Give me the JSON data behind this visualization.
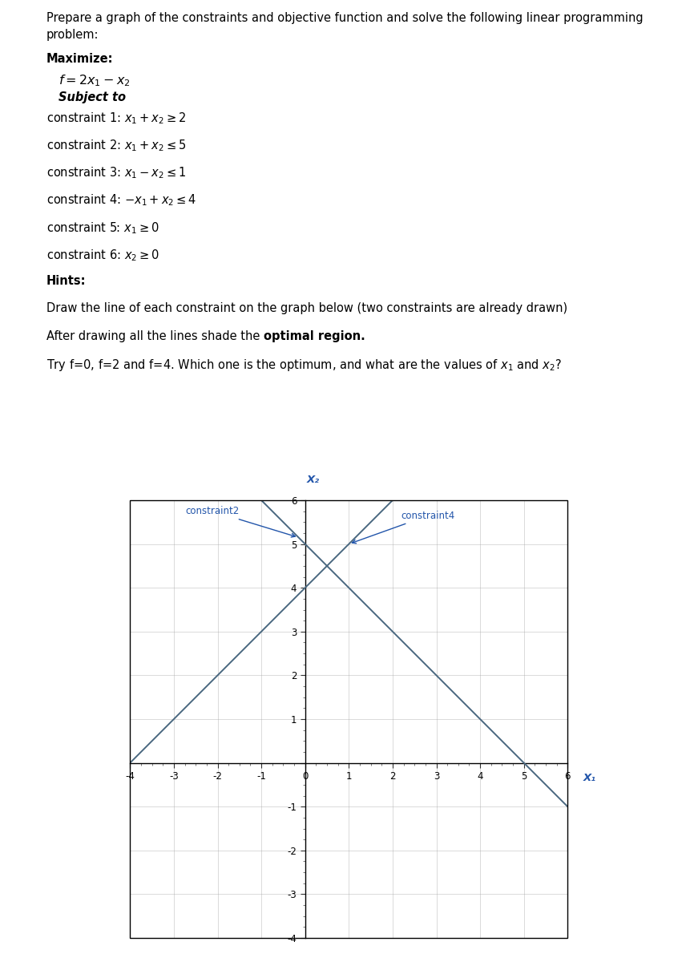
{
  "background_color": "#ffffff",
  "text_color": "#000000",
  "line_color": "#4a6880",
  "arrow_color": "#2255aa",
  "grid_color": "#aaaaaa",
  "xlim": [
    -4,
    6
  ],
  "ylim": [
    -4,
    6
  ],
  "xticks": [
    -4,
    -3,
    -2,
    -1,
    0,
    1,
    2,
    3,
    4,
    5,
    6
  ],
  "yticks": [
    -4,
    -3,
    -2,
    -1,
    0,
    1,
    2,
    3,
    4,
    5,
    6
  ],
  "x1_label": "X₁",
  "x2_label": "X₂",
  "label_constraint2": "constraint2",
  "label_constraint4": "constraint4"
}
